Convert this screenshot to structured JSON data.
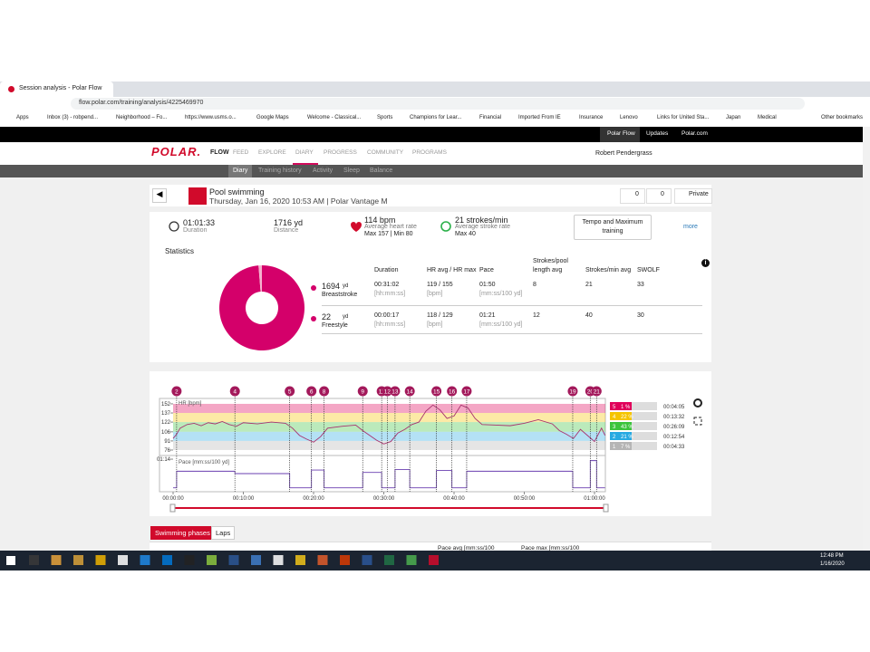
{
  "browser": {
    "tab_title": "Session analysis - Polar Flow",
    "url": "flow.polar.com/training/analysis/4225469970",
    "bookmarks": [
      "Apps",
      "Inbox (3) - robpend...",
      "Neighborhood – Fo...",
      "https://www.usms.o...",
      "Google Maps",
      "Welcome - Classical...",
      "Sports",
      "Champions for Lear...",
      "Financial",
      "Imported From IE",
      "Insurance",
      "Lenovo",
      "Links for United Sta...",
      "Japan",
      "Medical",
      "Other bookmarks"
    ]
  },
  "site": {
    "topbar": [
      "Polar Flow",
      "Updates",
      "Polar.com"
    ],
    "logo": "POLAR.",
    "product": "FLOW",
    "nav": [
      "FEED",
      "EXPLORE",
      "DIARY",
      "PROGRESS",
      "COMMUNITY",
      "PROGRAMS"
    ],
    "user": "Robert Pendergrass",
    "subnav": [
      "Diary",
      "Training history",
      "Activity",
      "Sleep",
      "Balance"
    ]
  },
  "session": {
    "sport": "Pool swimming",
    "subtitle": "Thursday, Jan 16, 2020 10:53 AM | Polar Vantage M",
    "likes": "0",
    "comments": "0",
    "privacy": "Private"
  },
  "summary": {
    "duration": "01:01:33",
    "duration_label": "Duration",
    "distance": "1716 yd",
    "distance_label": "Distance",
    "hr": "114 bpm",
    "hr_label": "Average heart rate",
    "hr_detail": "Max 157  |  Min 80",
    "strokes": "21 strokes/min",
    "strokes_label": "Average stroke rate",
    "strokes_detail": "Max 40",
    "button": "Tempo and Maximum training",
    "more": "more"
  },
  "statistics": {
    "title": "Statistics",
    "columns": [
      "Duration",
      "HR avg / HR max",
      "Pace",
      "Strokes/pool length avg",
      "Strokes/min avg",
      "SWOLF"
    ],
    "rows": [
      [
        "00:31:02",
        "[hh:mm:ss]",
        "119 / 155",
        "[bpm]",
        "01:50",
        "[mm:ss/100 yd]",
        "8",
        "21",
        "33"
      ],
      [
        "00:00:17",
        "[hh:mm:ss]",
        "118 / 129",
        "[bpm]",
        "01:21",
        "[mm:ss/100 yd]",
        "12",
        "40",
        "30"
      ]
    ]
  },
  "chart_data": [
    {
      "type": "pie",
      "categories": [
        "Breaststroke",
        "Freestyle"
      ],
      "values": [
        1694,
        22
      ],
      "unit": "yd",
      "colors": [
        "#d4006a",
        "#f4b3cf"
      ]
    },
    {
      "type": "line",
      "title": "HR [bpm]",
      "color": "#a8326e",
      "x": [
        0,
        0.5,
        1,
        2,
        3,
        4,
        5,
        6,
        7,
        8,
        9,
        10,
        12,
        14,
        16,
        17,
        18,
        19,
        20,
        21,
        22,
        24,
        26,
        27,
        28,
        29,
        30,
        31,
        32,
        33,
        34,
        35,
        36,
        37,
        38,
        39,
        40,
        41,
        42,
        43,
        44,
        46,
        48,
        50,
        52,
        54,
        55,
        56,
        57,
        58,
        59,
        60,
        61,
        61.5
      ],
      "values": [
        95,
        102,
        112,
        118,
        120,
        116,
        121,
        119,
        123,
        118,
        115,
        121,
        119,
        122,
        120,
        112,
        100,
        94,
        89,
        98,
        112,
        115,
        117,
        108,
        100,
        92,
        86,
        90,
        104,
        110,
        118,
        122,
        140,
        150,
        142,
        128,
        132,
        150,
        145,
        128,
        118,
        117,
        116,
        120,
        126,
        119,
        108,
        102,
        95,
        110,
        100,
        90,
        112,
        100
      ],
      "xlim": [
        0,
        61.55
      ],
      "ylim": [
        70,
        157
      ],
      "xticks": [
        {
          "value": 0,
          "label": "00:00:00"
        },
        {
          "value": 10,
          "label": "00:10:00"
        },
        {
          "value": 20,
          "label": "00:20:00"
        },
        {
          "value": 30,
          "label": "00:30:00"
        },
        {
          "value": 40,
          "label": "00:40:00"
        },
        {
          "value": 50,
          "label": "00:50:00"
        },
        {
          "value": 60,
          "label": "01:00:00"
        }
      ],
      "yticks": [
        152,
        137,
        122,
        106,
        91,
        76
      ],
      "markers": {
        "labels": [
          "2",
          "4",
          "5",
          "6",
          "8",
          "9",
          "11",
          "12",
          "13",
          "14",
          "15",
          "16",
          "17",
          "19",
          "20",
          "21"
        ],
        "x": [
          0.5,
          8.8,
          16.6,
          19.7,
          21.5,
          27,
          29.7,
          30.5,
          31.6,
          33.7,
          37.5,
          39.7,
          41.8,
          56.9,
          59.4,
          60.3
        ]
      },
      "zones": [
        {
          "zone": "5",
          "percent": "1 %",
          "time": "00:04:05",
          "color": "#e0005a"
        },
        {
          "zone": "4",
          "percent": "22 %",
          "time": "00:13:32",
          "color": "#f5c400"
        },
        {
          "zone": "3",
          "percent": "43 %",
          "time": "00:26:09",
          "color": "#3cc43c"
        },
        {
          "zone": "2",
          "percent": "21 %",
          "time": "00:12:54",
          "color": "#27a9e1"
        },
        {
          "zone": "1",
          "percent": "7 %",
          "time": "00:04:33",
          "color": "#b5b5b5"
        }
      ],
      "pace": {
        "label": "Pace [mm:ss/100 yd]",
        "color": "#6a3fb0",
        "ylim": [
          200,
          70
        ],
        "yticks": [
          {
            "value": 74,
            "label": "01:14"
          }
        ],
        "x": [
          0,
          0.5,
          0.5,
          8.8,
          8.8,
          16.6,
          16.6,
          19.7,
          19.7,
          21.5,
          21.5,
          27,
          27,
          29.7,
          29.7,
          31.6,
          31.6,
          33.7,
          33.7,
          37.5,
          37.5,
          39.7,
          39.7,
          41.8,
          41.8,
          56.9,
          56.9,
          59.4,
          59.4,
          60.3,
          60.3,
          61.5
        ],
        "values": [
          195,
          195,
          125,
          125,
          135,
          135,
          195,
          195,
          120,
          120,
          195,
          195,
          130,
          130,
          195,
          195,
          118,
          118,
          195,
          195,
          122,
          122,
          195,
          195,
          125,
          125,
          195,
          195,
          80,
          80,
          195,
          195
        ]
      }
    }
  ],
  "tabs": [
    "Swimming phases",
    "Laps"
  ],
  "table": {
    "columns": [
      "Pace avg [mm:ss/100",
      "Pace max [mm:ss/100"
    ]
  },
  "taskbar": {
    "time": "12:48 PM",
    "date": "1/16/2020"
  }
}
